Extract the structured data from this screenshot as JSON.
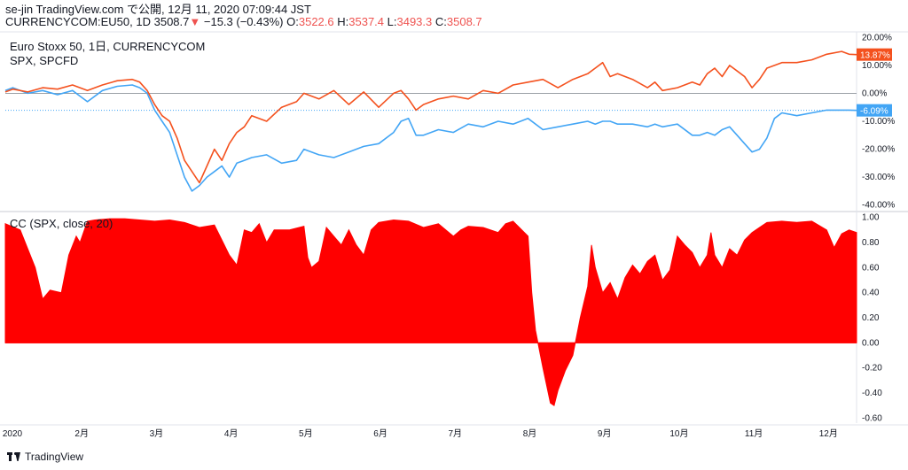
{
  "header": {
    "line1": "se-jin TradingView.com で公開, 12月 11, 2020 07:09:44 JST",
    "symbol": "CURRENCYCOM:EU50, 1D",
    "last": "3508.7",
    "arrow": "▼",
    "change": "−15.3 (−0.43%)",
    "o_label": "O:",
    "o_value": "3522.6",
    "h_label": "H:",
    "h_value": "3537.4",
    "l_label": "L:",
    "l_value": "3493.3",
    "c_label": "C:",
    "c_value": "3508.7"
  },
  "legend": {
    "main_line1": "Euro Stoxx 50, 1日, CURRENCYCOM",
    "main_line2": "SPX, SPCFD",
    "indicator": "CC (SPX, close, 20)"
  },
  "footer": {
    "brand": "TradingView"
  },
  "colors": {
    "eu50": "#f4511e",
    "spx": "#42a5f5",
    "cc": "#ff0000",
    "grid": "#e0e3eb",
    "zero": "#9aa0a6"
  },
  "chart_data": [
    {
      "type": "line",
      "yunit": "%",
      "ylim": [
        -42,
        22
      ],
      "yticks": [
        "20.00%",
        "10.00%",
        "0.00%",
        "-10.00%",
        "-20.00%",
        "-30.00%",
        "-40.00%"
      ],
      "ytick_values": [
        20,
        10,
        0,
        -10,
        -20,
        -30,
        -40
      ],
      "xticks": [
        "2020",
        "2月",
        "3月",
        "4月",
        "5月",
        "6月",
        "7月",
        "8月",
        "9月",
        "10月",
        "11月",
        "12月"
      ],
      "xtick_positions": [
        0,
        1,
        2,
        3,
        4,
        5,
        6,
        7,
        8,
        9,
        10,
        11
      ],
      "x_range": [
        0,
        11.4
      ],
      "series": [
        {
          "name": "Euro Stoxx 50",
          "last_label": "13.87%",
          "x": [
            0,
            0.1,
            0.3,
            0.5,
            0.7,
            0.9,
            1.0,
            1.1,
            1.3,
            1.5,
            1.7,
            1.8,
            1.9,
            2.0,
            2.1,
            2.2,
            2.3,
            2.4,
            2.5,
            2.6,
            2.7,
            2.8,
            2.9,
            3.0,
            3.1,
            3.2,
            3.3,
            3.5,
            3.7,
            3.9,
            4.0,
            4.2,
            4.4,
            4.6,
            4.8,
            5.0,
            5.2,
            5.3,
            5.4,
            5.5,
            5.6,
            5.8,
            6.0,
            6.2,
            6.4,
            6.6,
            6.8,
            7.0,
            7.2,
            7.4,
            7.6,
            7.8,
            7.9,
            8.0,
            8.1,
            8.2,
            8.4,
            8.6,
            8.7,
            8.8,
            9.0,
            9.2,
            9.3,
            9.4,
            9.5,
            9.6,
            9.7,
            9.8,
            9.9,
            10.0,
            10.1,
            10.2,
            10.3,
            10.4,
            10.6,
            10.8,
            11.0,
            11.2,
            11.3,
            11.4
          ],
          "values": [
            0.5,
            1.5,
            0.5,
            2.0,
            1.5,
            3.0,
            2.0,
            1.0,
            3.0,
            4.5,
            5.0,
            4.0,
            1.0,
            -4.0,
            -8.0,
            -10.0,
            -16.0,
            -24.0,
            -28.0,
            -32.0,
            -26.0,
            -20.0,
            -24.0,
            -18.0,
            -14.0,
            -12.0,
            -8.0,
            -10.0,
            -5.0,
            -3.0,
            0.0,
            -2.0,
            1.0,
            -4.0,
            0.5,
            -5.0,
            0.0,
            1.0,
            -2.0,
            -6.0,
            -4.0,
            -2.0,
            -1.0,
            -2.0,
            1.0,
            0.0,
            3.0,
            4.0,
            5.0,
            2.0,
            5.0,
            7.0,
            9.0,
            11.0,
            6.0,
            7.0,
            5.0,
            2.0,
            4.0,
            1.0,
            2.0,
            4.0,
            3.0,
            7.0,
            9.0,
            6.0,
            10.0,
            8.0,
            6.0,
            2.0,
            5.0,
            9.0,
            10.0,
            11.0,
            11.0,
            12.0,
            14.0,
            15.0,
            14.0,
            13.87
          ]
        },
        {
          "name": "SPX",
          "last_label": "-6.09%",
          "x": [
            0,
            0.1,
            0.3,
            0.5,
            0.7,
            0.9,
            1.0,
            1.1,
            1.3,
            1.5,
            1.7,
            1.8,
            1.9,
            2.0,
            2.1,
            2.2,
            2.3,
            2.4,
            2.5,
            2.6,
            2.7,
            2.8,
            2.9,
            3.0,
            3.1,
            3.2,
            3.3,
            3.5,
            3.7,
            3.9,
            4.0,
            4.2,
            4.4,
            4.6,
            4.8,
            5.0,
            5.2,
            5.3,
            5.4,
            5.5,
            5.6,
            5.8,
            6.0,
            6.2,
            6.4,
            6.6,
            6.8,
            7.0,
            7.2,
            7.4,
            7.6,
            7.8,
            7.9,
            8.0,
            8.1,
            8.2,
            8.4,
            8.6,
            8.7,
            8.8,
            9.0,
            9.2,
            9.3,
            9.4,
            9.5,
            9.6,
            9.7,
            9.8,
            9.9,
            10.0,
            10.1,
            10.2,
            10.3,
            10.4,
            10.6,
            10.8,
            11.0,
            11.2,
            11.3,
            11.4
          ],
          "values": [
            1.0,
            2.0,
            0.0,
            1.0,
            -0.5,
            1.0,
            -1.0,
            -3.0,
            1.0,
            2.5,
            3.0,
            2.0,
            0.0,
            -6.0,
            -10.0,
            -14.0,
            -22.0,
            -30.0,
            -35.0,
            -33.0,
            -30.0,
            -28.0,
            -26.0,
            -30.0,
            -25.0,
            -24.0,
            -23.0,
            -22.0,
            -25.0,
            -24.0,
            -20.0,
            -22.0,
            -23.0,
            -21.0,
            -19.0,
            -18.0,
            -14.0,
            -10.0,
            -9.0,
            -15.0,
            -15.0,
            -13.0,
            -14.0,
            -11.0,
            -12.0,
            -10.0,
            -11.0,
            -9.0,
            -13.0,
            -12.0,
            -11.0,
            -10.0,
            -11.0,
            -10.0,
            -10.0,
            -11.0,
            -11.0,
            -12.0,
            -11.0,
            -12.0,
            -11.0,
            -15.0,
            -15.0,
            -14.0,
            -15.0,
            -13.0,
            -12.0,
            -15.0,
            -18.0,
            -21.0,
            -20.0,
            -16.0,
            -9.0,
            -7.0,
            -8.0,
            -7.0,
            -6.0,
            -6.0,
            -6.0,
            -6.09
          ]
        }
      ]
    },
    {
      "type": "area",
      "series_name": "CC (SPX, close, 20)",
      "ylim": [
        -0.64,
        1.04
      ],
      "yticks": [
        "1.00",
        "0.80",
        "0.60",
        "0.40",
        "0.20",
        "0.00",
        "-0.20",
        "-0.40",
        "-0.60"
      ],
      "ytick_values": [
        1.0,
        0.8,
        0.6,
        0.4,
        0.2,
        0.0,
        -0.2,
        -0.4,
        -0.6
      ],
      "x": [
        0,
        0.2,
        0.4,
        0.5,
        0.6,
        0.75,
        0.85,
        0.95,
        1.0,
        1.1,
        1.2,
        1.4,
        1.6,
        1.8,
        2.0,
        2.2,
        2.4,
        2.6,
        2.8,
        3.0,
        3.1,
        3.2,
        3.3,
        3.4,
        3.5,
        3.6,
        3.8,
        4.0,
        4.05,
        4.1,
        4.2,
        4.3,
        4.4,
        4.5,
        4.6,
        4.7,
        4.8,
        4.9,
        5.0,
        5.2,
        5.4,
        5.6,
        5.8,
        6.0,
        6.1,
        6.2,
        6.4,
        6.6,
        6.7,
        6.8,
        7.0,
        7.05,
        7.1,
        7.2,
        7.3,
        7.35,
        7.4,
        7.5,
        7.6,
        7.7,
        7.8,
        7.85,
        7.9,
        8.0,
        8.1,
        8.2,
        8.3,
        8.4,
        8.5,
        8.6,
        8.7,
        8.8,
        8.9,
        9.0,
        9.1,
        9.2,
        9.3,
        9.4,
        9.45,
        9.5,
        9.6,
        9.7,
        9.8,
        9.9,
        10.0,
        10.2,
        10.4,
        10.6,
        10.8,
        11.0,
        11.1,
        11.2,
        11.3,
        11.4
      ],
      "values": [
        0.95,
        0.9,
        0.6,
        0.35,
        0.42,
        0.4,
        0.7,
        0.85,
        0.8,
        0.97,
        0.98,
        0.99,
        0.99,
        0.98,
        0.97,
        0.98,
        0.96,
        0.92,
        0.94,
        0.7,
        0.62,
        0.9,
        0.88,
        0.95,
        0.8,
        0.9,
        0.9,
        0.93,
        0.68,
        0.6,
        0.65,
        0.92,
        0.85,
        0.78,
        0.9,
        0.78,
        0.7,
        0.9,
        0.96,
        0.98,
        0.97,
        0.92,
        0.95,
        0.85,
        0.9,
        0.93,
        0.92,
        0.88,
        0.95,
        0.97,
        0.85,
        0.4,
        0.1,
        -0.2,
        -0.48,
        -0.5,
        -0.38,
        -0.22,
        -0.1,
        0.2,
        0.45,
        0.78,
        0.6,
        0.4,
        0.48,
        0.35,
        0.52,
        0.62,
        0.55,
        0.65,
        0.7,
        0.5,
        0.58,
        0.85,
        0.78,
        0.72,
        0.6,
        0.7,
        0.88,
        0.7,
        0.6,
        0.75,
        0.7,
        0.82,
        0.88,
        0.96,
        0.97,
        0.96,
        0.97,
        0.9,
        0.76,
        0.87,
        0.9,
        0.88
      ]
    }
  ]
}
